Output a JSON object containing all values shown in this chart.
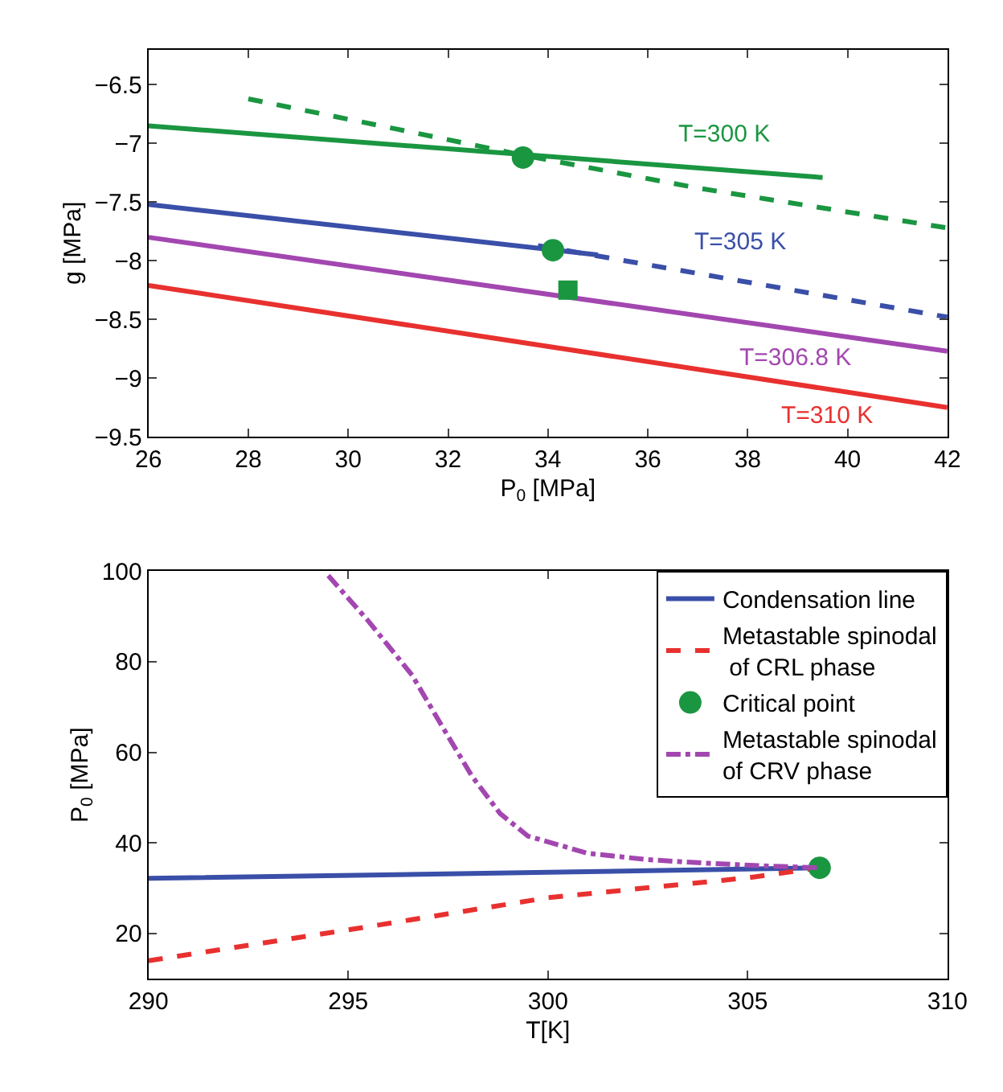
{
  "chart_data": [
    {
      "type": "line",
      "xlabel": "P$_{0}$ [MPa]",
      "ylabel": "g [MPa]",
      "xlim": [
        26,
        42
      ],
      "xticks": [
        26,
        28,
        30,
        32,
        34,
        36,
        38,
        40,
        42
      ],
      "ylim": [
        -9.5,
        -6.2
      ],
      "yticks": [
        -9.5,
        -9,
        -8.5,
        -8,
        -7.5,
        -7,
        -6.5
      ],
      "legend": false,
      "series": [
        {
          "name": "T=300 K",
          "color": "#1a9641",
          "line_style": "solid",
          "x": [
            26,
            39.5
          ],
          "values": [
            -6.85,
            -7.29
          ]
        },
        {
          "color": "#1a9641",
          "line_style": "dashed",
          "x": [
            28,
            31,
            33.5,
            37,
            42
          ],
          "values": [
            -6.62,
            -6.88,
            -7.1,
            -7.38,
            -7.72
          ]
        },
        {
          "name": "T=305 K",
          "color": "#3a4fa8",
          "line_style": "solid",
          "x": [
            26,
            35
          ],
          "values": [
            -7.52,
            -7.95
          ]
        },
        {
          "color": "#3a4fa8",
          "line_style": "dashed",
          "x": [
            33.8,
            42
          ],
          "values": [
            -7.87,
            -8.48
          ]
        },
        {
          "name": "T=306.8 K",
          "color": "#a347b0",
          "line_style": "solid",
          "x": [
            26,
            42
          ],
          "values": [
            -7.8,
            -8.77
          ]
        },
        {
          "name": "T=310 K",
          "color": "#e8312f",
          "line_style": "solid",
          "x": [
            26,
            42
          ],
          "values": [
            -8.21,
            -9.25
          ]
        },
        {
          "type": "scatter",
          "color": "#1a9641",
          "marker": "circle",
          "x": [
            33.5,
            34.1
          ],
          "values": [
            -7.12,
            -7.91
          ]
        },
        {
          "type": "scatter",
          "color": "#1a9641",
          "marker": "square",
          "x": [
            34.4
          ],
          "values": [
            -8.25
          ]
        }
      ]
    },
    {
      "type": "line",
      "xlabel": "T[K]",
      "ylabel": "P$_{0}$ [MPa]",
      "xlim": [
        290,
        310
      ],
      "xticks": [
        290,
        295,
        300,
        305,
        310
      ],
      "ylim": [
        10,
        100
      ],
      "yticks": [
        20,
        40,
        60,
        80,
        100
      ],
      "legend": "top right",
      "series": [
        {
          "name": "Condensation line",
          "color": "#3a4fa8",
          "line_style": "solid",
          "x": [
            290,
            300,
            306.8
          ],
          "values": [
            32.2,
            33.5,
            34.5
          ]
        },
        {
          "name": "Metastable spinodal\n of CRL phase",
          "color": "#e8312f",
          "line_style": "dashed",
          "x": [
            290,
            295,
            300,
            305,
            306.8
          ],
          "values": [
            14,
            20.8,
            27.9,
            32.3,
            34.5
          ]
        },
        {
          "type": "scatter",
          "name": "Critical point",
          "color": "#1a9641",
          "marker": "circle",
          "x": [
            306.8
          ],
          "values": [
            34.5
          ]
        },
        {
          "name": "Metastable spinodal\nof CRV phase",
          "color": "#a347b0",
          "line_style": "dashdot",
          "x": [
            294.5,
            295.5,
            296.6,
            297.4,
            298.1,
            298.8,
            299.5,
            301,
            302.5,
            304,
            305.5,
            306.8
          ],
          "values": [
            99,
            89,
            77,
            65,
            54.7,
            46.5,
            41.5,
            37.7,
            36.3,
            35.5,
            34.9,
            34.5
          ]
        }
      ]
    }
  ]
}
